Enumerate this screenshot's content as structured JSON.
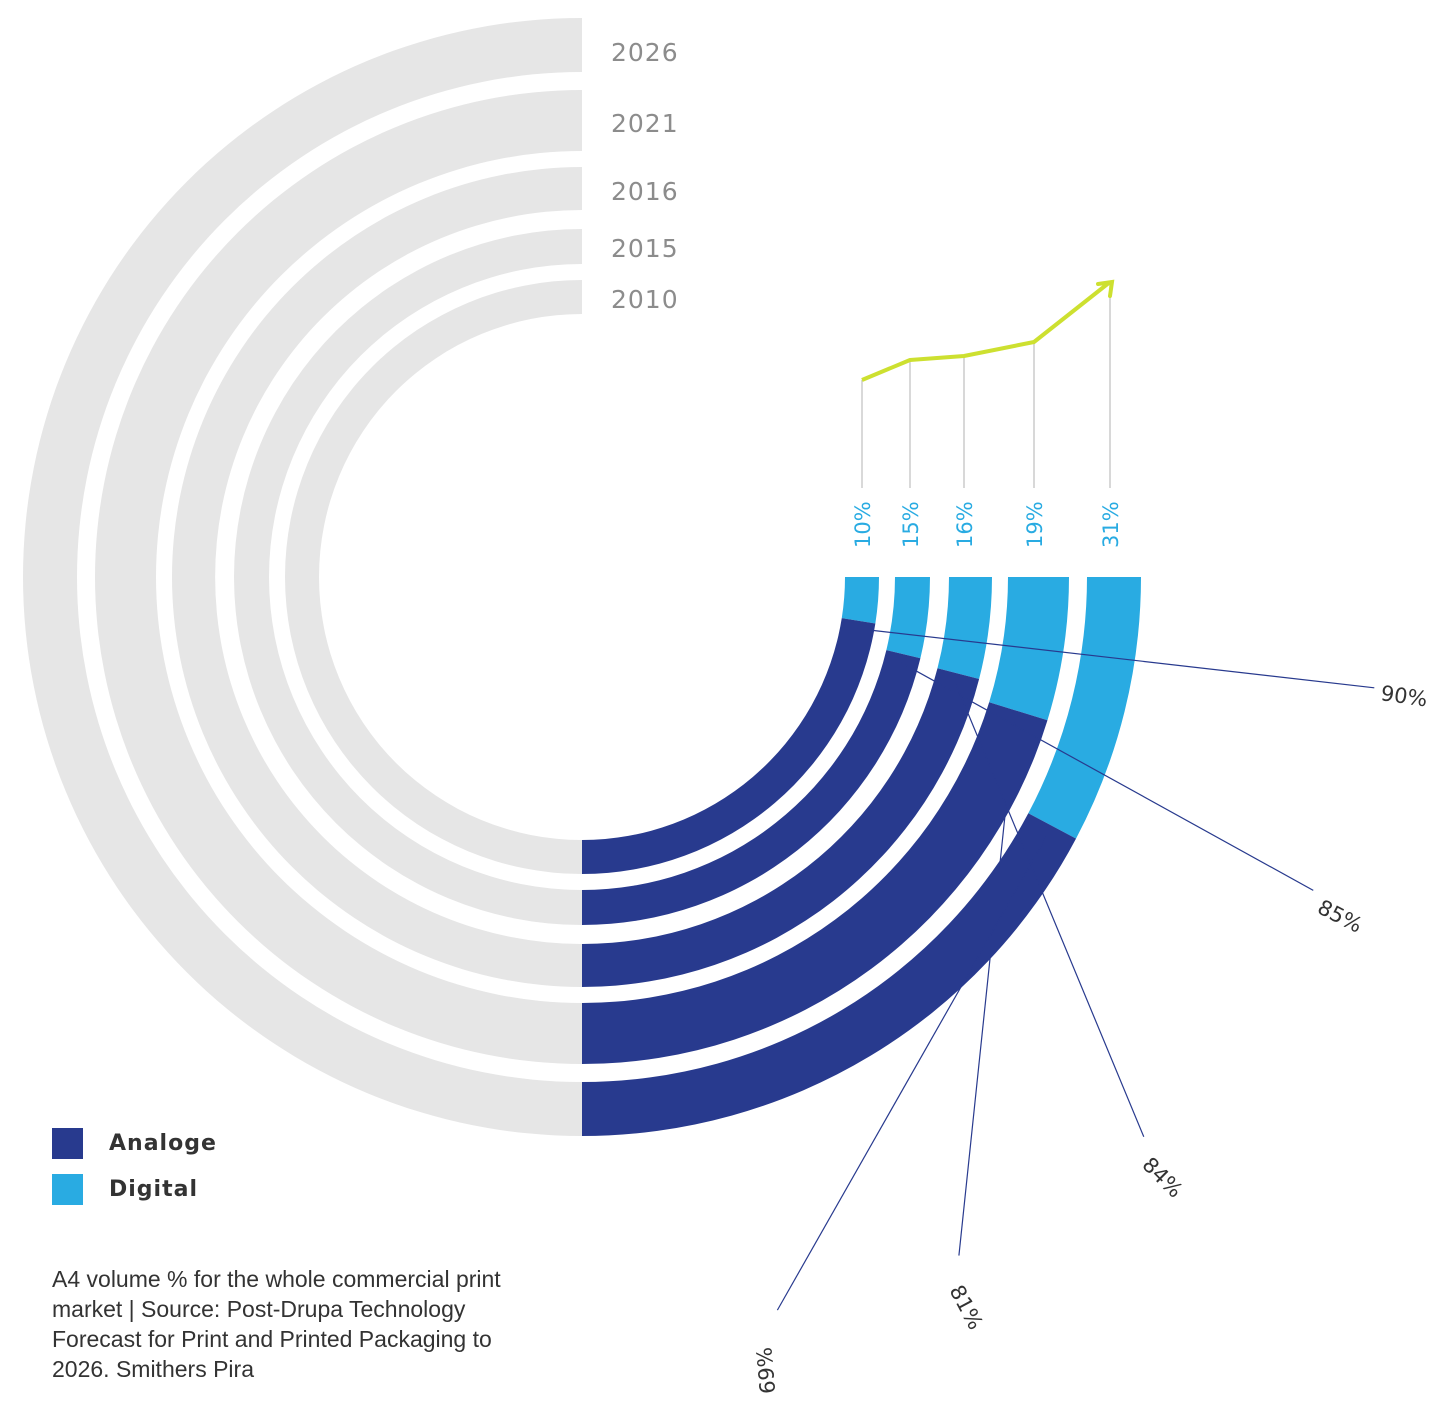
{
  "chart_data": {
    "type": "radial-bar",
    "years": [
      "2010",
      "2015",
      "2016",
      "2021",
      "2026"
    ],
    "series": [
      {
        "name": "Analoge",
        "values": [
          90,
          85,
          84,
          81,
          69
        ]
      },
      {
        "name": "Digital",
        "values": [
          10,
          15,
          16,
          19,
          31
        ]
      }
    ],
    "digital_labels": [
      "10%",
      "15%",
      "16%",
      "19%",
      "31%"
    ],
    "analog_labels": [
      "90%",
      "85%",
      "84%",
      "81%",
      "%69"
    ]
  },
  "colors": {
    "analog": "#283a8e",
    "digital": "#29abe2",
    "track": "#e6e6e6",
    "trend": "#cde030",
    "leader": "#283a8e"
  },
  "legend": {
    "analog_label": "Analoge",
    "digital_label": "Digital"
  },
  "caption": "A4 volume % for the whole commercial print market |  Source: Post-Drupa Technology Forecast for Print and Printed Packaging to 2026. Smithers Pira"
}
